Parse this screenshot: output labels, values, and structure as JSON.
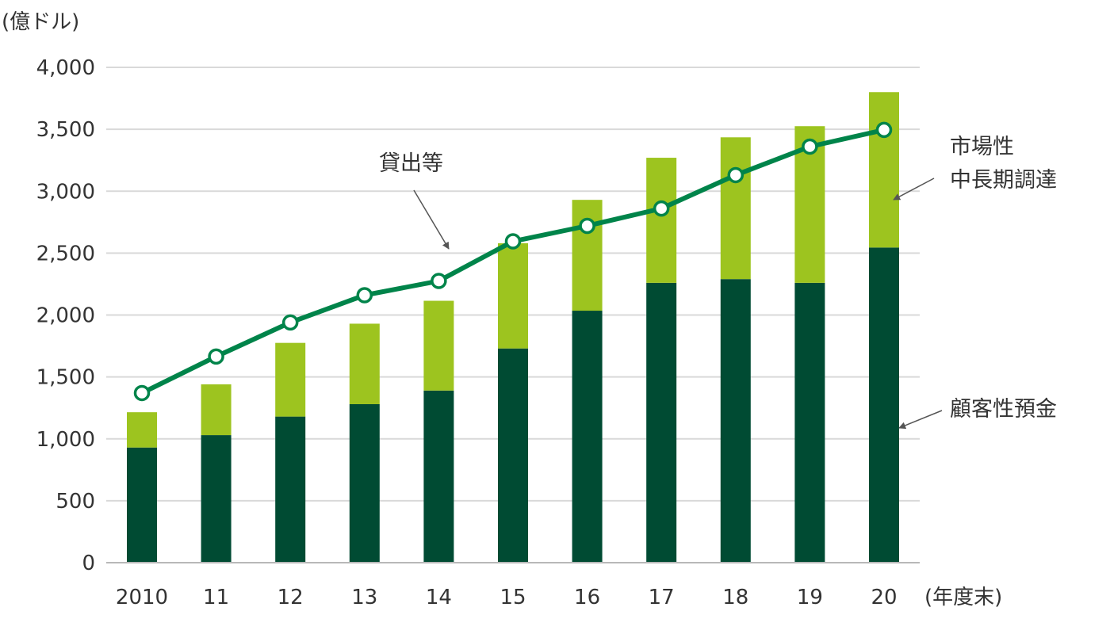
{
  "chart_data": {
    "type": "bar",
    "stacked": true,
    "y_unit_label": "(億ドル)",
    "x_unit_label": "(年度末)",
    "categories": [
      "2010",
      "11",
      "12",
      "13",
      "14",
      "15",
      "16",
      "17",
      "18",
      "19",
      "20"
    ],
    "ylim": [
      0,
      4000
    ],
    "yticks": [
      "0",
      "500",
      "1,000",
      "1,500",
      "2,000",
      "2,500",
      "3,000",
      "3,500",
      "4,000"
    ],
    "grid": true,
    "series": [
      {
        "name": "顧客性預金",
        "kind": "bar",
        "color": "#004b33",
        "values": [
          930,
          1030,
          1180,
          1280,
          1390,
          1730,
          2035,
          2260,
          2290,
          2260,
          2545
        ]
      },
      {
        "name": "市場性中長期調達",
        "kind": "bar",
        "color": "#9dc41f",
        "values": [
          285,
          410,
          595,
          650,
          725,
          850,
          895,
          1010,
          1145,
          1265,
          1255
        ]
      },
      {
        "name": "貸出等",
        "kind": "line",
        "color": "#00844a",
        "values": [
          1370,
          1665,
          1940,
          2160,
          2275,
          2595,
          2720,
          2860,
          3130,
          3360,
          3495
        ]
      }
    ],
    "annotations": {
      "loans": "貸出等",
      "market_line1": "市場性",
      "market_line2": "中長期調達",
      "deposits": "顧客性預金"
    }
  }
}
